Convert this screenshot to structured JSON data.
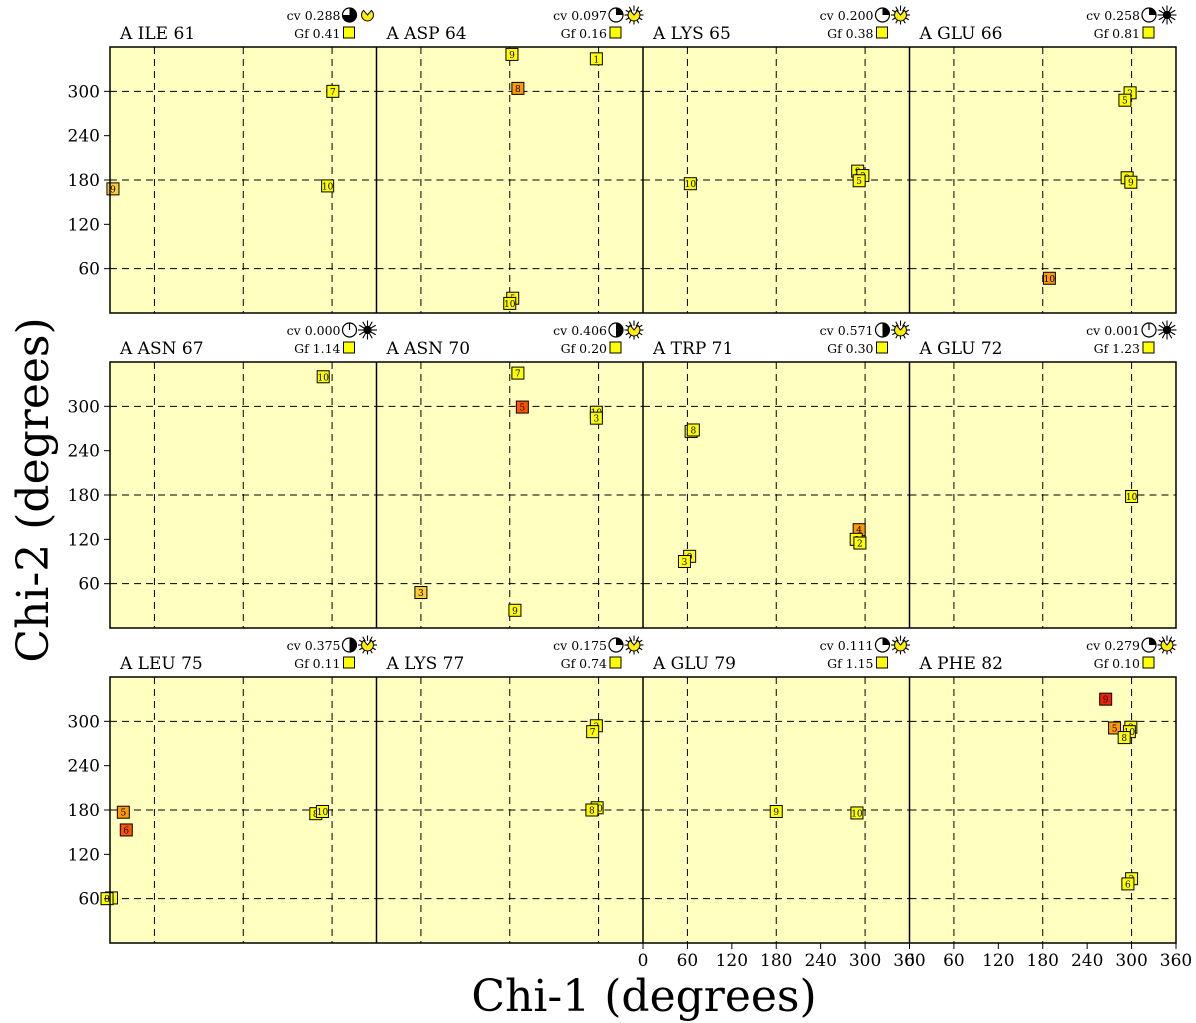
{
  "figure": {
    "xlabel": "Chi-1 (degrees)",
    "ylabel": "Chi-2 (degrees)",
    "x_ticks": [
      0,
      60,
      120,
      180,
      240,
      300,
      360
    ],
    "y_ticks": [
      60,
      120,
      180,
      240,
      300
    ]
  },
  "colors": {
    "panel_bg": "#ffffc0",
    "marker_yellow": "#ffff00",
    "marker_light_orange": "#ffcc33",
    "marker_orange": "#ff9900",
    "marker_dark_orange": "#ff5500",
    "marker_red": "#ee2200"
  },
  "chart_data": [
    {
      "type": "scatter",
      "title": "A ILE 61",
      "cv": "cv 0.288",
      "gf": "Gf  0.41",
      "xlim": [
        0,
        360
      ],
      "ylim": [
        0,
        360
      ],
      "grid": true,
      "cv_icon": "pie-three-quarter-icon",
      "gf_icon": "pacman-icon",
      "points": [
        {
          "x": 301,
          "y": 300,
          "label": "7",
          "color": "#ffff00"
        },
        {
          "x": 4,
          "y": 168,
          "label": "9",
          "color": "#ffcc33"
        },
        {
          "x": 294,
          "y": 172,
          "label": "10",
          "color": "#ffff00"
        }
      ]
    },
    {
      "type": "scatter",
      "title": "A ASP 64",
      "cv": "cv 0.097",
      "gf": "Gf  0.16",
      "xlim": [
        0,
        360
      ],
      "ylim": [
        0,
        360
      ],
      "grid": true,
      "cv_icon": "pie-quarter-icon",
      "gf_icon": "pacman-rays-icon",
      "points": [
        {
          "x": 183,
          "y": 350,
          "label": "9",
          "color": "#ffff00"
        },
        {
          "x": 297,
          "y": 344,
          "label": "1",
          "color": "#ffff00"
        },
        {
          "x": 191,
          "y": 304,
          "label": "8",
          "color": "#ff9900"
        },
        {
          "x": 184,
          "y": 20,
          "label": "5",
          "color": "#ffff00"
        },
        {
          "x": 180,
          "y": 13,
          "label": "10",
          "color": "#ffff00"
        }
      ]
    },
    {
      "type": "scatter",
      "title": "A LYS 65",
      "cv": "cv 0.200",
      "gf": "Gf  0.38",
      "xlim": [
        0,
        360
      ],
      "ylim": [
        0,
        360
      ],
      "grid": true,
      "cv_icon": "pie-quarter-icon",
      "gf_icon": "crown-rays-icon",
      "points": [
        {
          "x": 64,
          "y": 175,
          "label": "10",
          "color": "#ffff00"
        },
        {
          "x": 290,
          "y": 192,
          "label": "9",
          "color": "#ffff00"
        },
        {
          "x": 297,
          "y": 186,
          "label": "3",
          "color": "#ffff00"
        },
        {
          "x": 292,
          "y": 179,
          "label": "5",
          "color": "#ffff00"
        }
      ]
    },
    {
      "type": "scatter",
      "title": "A GLU 66",
      "cv": "cv 0.258",
      "gf": "Gf  0.81",
      "xlim": [
        0,
        360
      ],
      "ylim": [
        0,
        360
      ],
      "grid": true,
      "cv_icon": "pie-quarter-icon",
      "gf_icon": "sun-rays-icon",
      "points": [
        {
          "x": 298,
          "y": 298,
          "label": "2",
          "color": "#ffff00"
        },
        {
          "x": 291,
          "y": 288,
          "label": "5",
          "color": "#ffff00"
        },
        {
          "x": 294,
          "y": 183,
          "label": "3",
          "color": "#ffff00"
        },
        {
          "x": 299,
          "y": 177,
          "label": "9",
          "color": "#ffff00"
        },
        {
          "x": 189,
          "y": 47,
          "label": "10",
          "color": "#ff9900"
        }
      ]
    },
    {
      "type": "scatter",
      "title": "A ASN 67",
      "cv": "cv 0.000",
      "gf": "Gf  1.14",
      "xlim": [
        0,
        360
      ],
      "ylim": [
        0,
        360
      ],
      "grid": true,
      "cv_icon": "circle-line-icon",
      "gf_icon": "sun-rays-icon",
      "points": [
        {
          "x": 288,
          "y": 340,
          "label": "10",
          "color": "#ffff00"
        }
      ]
    },
    {
      "type": "scatter",
      "title": "A ASN 70",
      "cv": "cv 0.406",
      "gf": "Gf  0.20",
      "xlim": [
        0,
        360
      ],
      "ylim": [
        0,
        360
      ],
      "grid": true,
      "cv_icon": "pie-half-icon",
      "gf_icon": "crown-rays-icon",
      "points": [
        {
          "x": 191,
          "y": 345,
          "label": "7",
          "color": "#ffff00"
        },
        {
          "x": 197,
          "y": 299,
          "label": "5",
          "color": "#ff5500"
        },
        {
          "x": 297,
          "y": 292,
          "label": "10",
          "color": "#ffff00"
        },
        {
          "x": 297,
          "y": 284,
          "label": "3",
          "color": "#ffff00"
        },
        {
          "x": 60,
          "y": 48,
          "label": "3",
          "color": "#ffcc33"
        },
        {
          "x": 187,
          "y": 24,
          "label": "9",
          "color": "#ffff00"
        }
      ]
    },
    {
      "type": "scatter",
      "title": "A TRP 71",
      "cv": "cv 0.571",
      "gf": "Gf  0.30",
      "xlim": [
        0,
        360
      ],
      "ylim": [
        0,
        360
      ],
      "grid": true,
      "cv_icon": "pie-half-icon",
      "gf_icon": "crown-rays-icon",
      "points": [
        {
          "x": 65,
          "y": 266,
          "label": "10",
          "color": "#ffff00"
        },
        {
          "x": 68,
          "y": 268,
          "label": "8",
          "color": "#ffff00"
        },
        {
          "x": 292,
          "y": 133,
          "label": "4",
          "color": "#ff9900"
        },
        {
          "x": 288,
          "y": 120,
          "label": "6",
          "color": "#ffff00"
        },
        {
          "x": 293,
          "y": 115,
          "label": "2",
          "color": "#ffff00"
        },
        {
          "x": 63,
          "y": 97,
          "label": "9",
          "color": "#ffff00"
        },
        {
          "x": 56,
          "y": 90,
          "label": "3",
          "color": "#ffff00"
        }
      ]
    },
    {
      "type": "scatter",
      "title": "A GLU 72",
      "cv": "cv 0.001",
      "gf": "Gf  1.23",
      "xlim": [
        0,
        360
      ],
      "ylim": [
        0,
        360
      ],
      "grid": true,
      "cv_icon": "circle-line-icon",
      "gf_icon": "sun-rays-icon",
      "points": [
        {
          "x": 300,
          "y": 178,
          "label": "10",
          "color": "#ffff00"
        }
      ]
    },
    {
      "type": "scatter",
      "title": "A LEU 75",
      "cv": "cv 0.375",
      "gf": "Gf  0.11",
      "xlim": [
        0,
        360
      ],
      "ylim": [
        0,
        360
      ],
      "grid": true,
      "cv_icon": "pie-half-icon",
      "gf_icon": "crown-rays-icon",
      "points": [
        {
          "x": 278,
          "y": 175,
          "label": "8",
          "color": "#ffff00"
        },
        {
          "x": 287,
          "y": 178,
          "label": "10",
          "color": "#ffff00"
        },
        {
          "x": 18,
          "y": 177,
          "label": "5",
          "color": "#ff9900"
        },
        {
          "x": 22,
          "y": 153,
          "label": "6",
          "color": "#ff5500"
        },
        {
          "x": 2,
          "y": 61,
          "label": "4",
          "color": "#ffff00"
        },
        {
          "x": -4,
          "y": 60,
          "label": "8",
          "color": "#ffff00"
        }
      ]
    },
    {
      "type": "scatter",
      "title": "A LYS 77",
      "cv": "cv 0.175",
      "gf": "Gf  0.74",
      "xlim": [
        0,
        360
      ],
      "ylim": [
        0,
        360
      ],
      "grid": true,
      "cv_icon": "pie-quarter-icon",
      "gf_icon": "crown-rays-icon",
      "points": [
        {
          "x": 297,
          "y": 294,
          "label": "3",
          "color": "#ffff00"
        },
        {
          "x": 292,
          "y": 286,
          "label": "7",
          "color": "#ffff00"
        },
        {
          "x": 298,
          "y": 183,
          "label": "10",
          "color": "#ffff00"
        },
        {
          "x": 291,
          "y": 180,
          "label": "8",
          "color": "#ffff00"
        }
      ]
    },
    {
      "type": "scatter",
      "title": "A GLU 79",
      "cv": "cv 0.111",
      "gf": "Gf  1.15",
      "xlim": [
        0,
        360
      ],
      "ylim": [
        0,
        360
      ],
      "grid": true,
      "cv_icon": "pie-quarter-icon",
      "gf_icon": "crown-rays-icon",
      "points": [
        {
          "x": 180,
          "y": 178,
          "label": "9",
          "color": "#ffff00"
        },
        {
          "x": 289,
          "y": 176,
          "label": "10",
          "color": "#ffff00"
        }
      ]
    },
    {
      "type": "scatter",
      "title": "A PHE 82",
      "cv": "cv 0.279",
      "gf": "Gf  0.10",
      "xlim": [
        0,
        360
      ],
      "ylim": [
        0,
        360
      ],
      "grid": true,
      "cv_icon": "pie-quarter-icon",
      "gf_icon": "crown-rays-icon",
      "points": [
        {
          "x": 265,
          "y": 330,
          "label": "9",
          "color": "#ee2200"
        },
        {
          "x": 277,
          "y": 291,
          "label": "5",
          "color": "#ff9900"
        },
        {
          "x": 299,
          "y": 292,
          "label": "3",
          "color": "#ffff00"
        },
        {
          "x": 297,
          "y": 286,
          "label": "10",
          "color": "#ffff00"
        },
        {
          "x": 290,
          "y": 278,
          "label": "8",
          "color": "#ffff00"
        },
        {
          "x": 300,
          "y": 87,
          "label": "2",
          "color": "#ffff00"
        },
        {
          "x": 295,
          "y": 80,
          "label": "6",
          "color": "#ffff00"
        }
      ]
    }
  ]
}
